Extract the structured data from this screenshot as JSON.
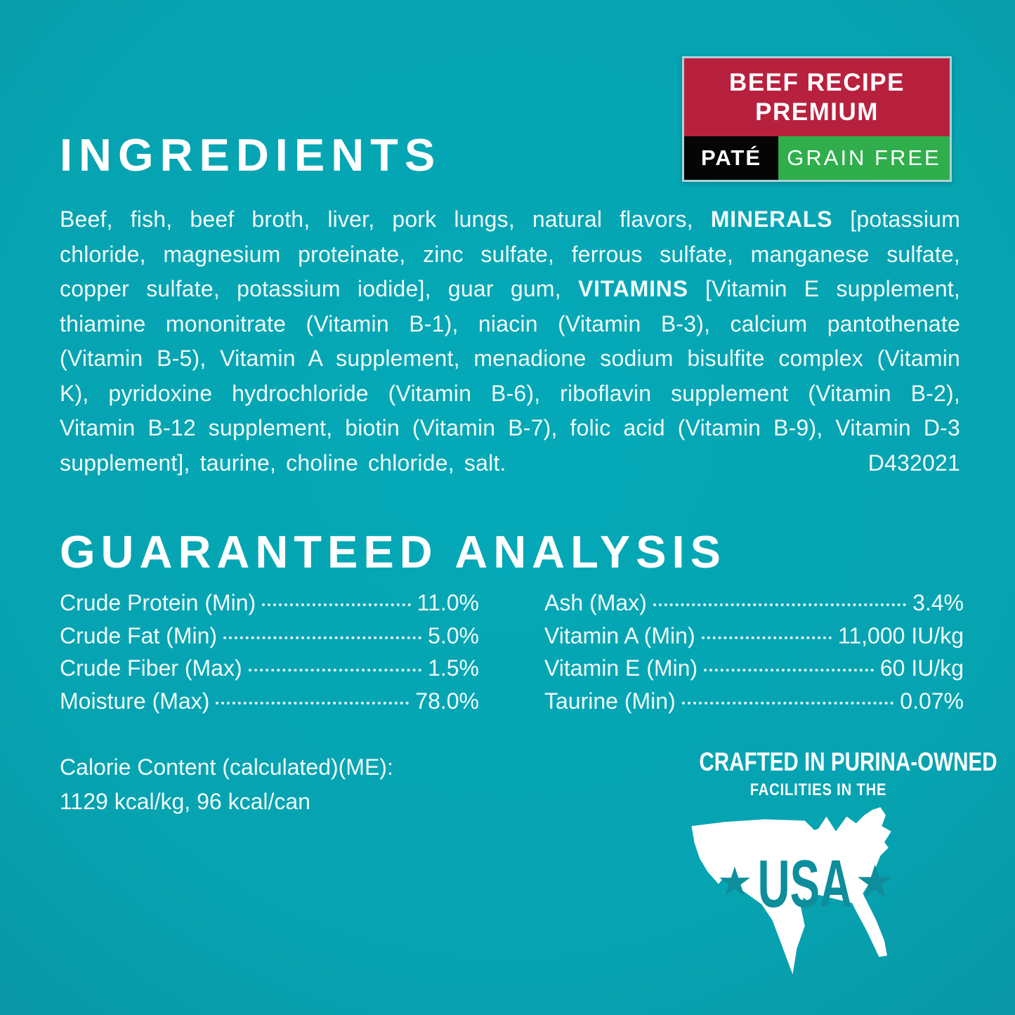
{
  "badge": {
    "line1": "BEEF RECIPE",
    "line2": "PREMIUM",
    "pate": "PATÉ",
    "grain_free": "GRAIN FREE"
  },
  "colors": {
    "background_teal": "#06a3b1",
    "badge_red": "#b8213e",
    "badge_black": "#050505",
    "badge_green": "#2fae4b",
    "badge_border": "#aed2d8",
    "text_white": "#f1fafa",
    "map_fill": "#ffffff",
    "map_accent_teal": "#0e8d9b"
  },
  "ingredients": {
    "title": "INGREDIENTS",
    "segments": [
      {
        "bold": false,
        "text": "Beef, fish, beef broth, liver, pork lungs, natural flavors, "
      },
      {
        "bold": true,
        "text": "MINERALS"
      },
      {
        "bold": false,
        "text": " [potassium chloride, magnesium proteinate, zinc sulfate, ferrous sulfate, manganese sulfate, copper sulfate, potassium iodide], guar gum, "
      },
      {
        "bold": true,
        "text": "VITAMINS"
      },
      {
        "bold": false,
        "text": " [Vitamin E supplement, thiamine mononitrate (Vitamin B-1), niacin (Vitamin B-3), calcium pantothenate (Vitamin B-5), Vitamin A supplement, menadione sodium bisulfite complex (Vitamin K), pyridoxine hydrochloride (Vitamin B-6), riboflavin supplement (Vitamin B-2), Vitamin B-12 supplement, biotin (Vitamin B-7), folic acid (Vitamin B-9), Vitamin D-3 supplement], taurine, choline chloride, salt."
      }
    ],
    "code": "D432021"
  },
  "guaranteed_analysis": {
    "title": "GUARANTEED ANALYSIS",
    "left": [
      {
        "label": "Crude Protein (Min)",
        "value": "11.0%"
      },
      {
        "label": "Crude Fat (Min)",
        "value": "5.0%"
      },
      {
        "label": "Crude Fiber (Max)",
        "value": "1.5%"
      },
      {
        "label": "Moisture (Max)",
        "value": "78.0%"
      }
    ],
    "right": [
      {
        "label": "Ash (Max)",
        "value": "3.4%"
      },
      {
        "label": "Vitamin A (Min)",
        "value": "11,000 IU/kg"
      },
      {
        "label": "Vitamin E (Min)",
        "value": "60 IU/kg"
      },
      {
        "label": "Taurine (Min)",
        "value": "0.07%"
      }
    ]
  },
  "calories": {
    "line1": "Calorie Content (calculated)(ME):",
    "line2": "1129 kcal/kg, 96 kcal/can"
  },
  "made_in": {
    "line1": "CRAFTED IN PURINA-OWNED",
    "line2": "FACILITIES IN THE",
    "usa": "USA",
    "map_icon": "usa-map-icon",
    "star_icons": [
      "star-icon-left",
      "star-icon-right"
    ]
  }
}
